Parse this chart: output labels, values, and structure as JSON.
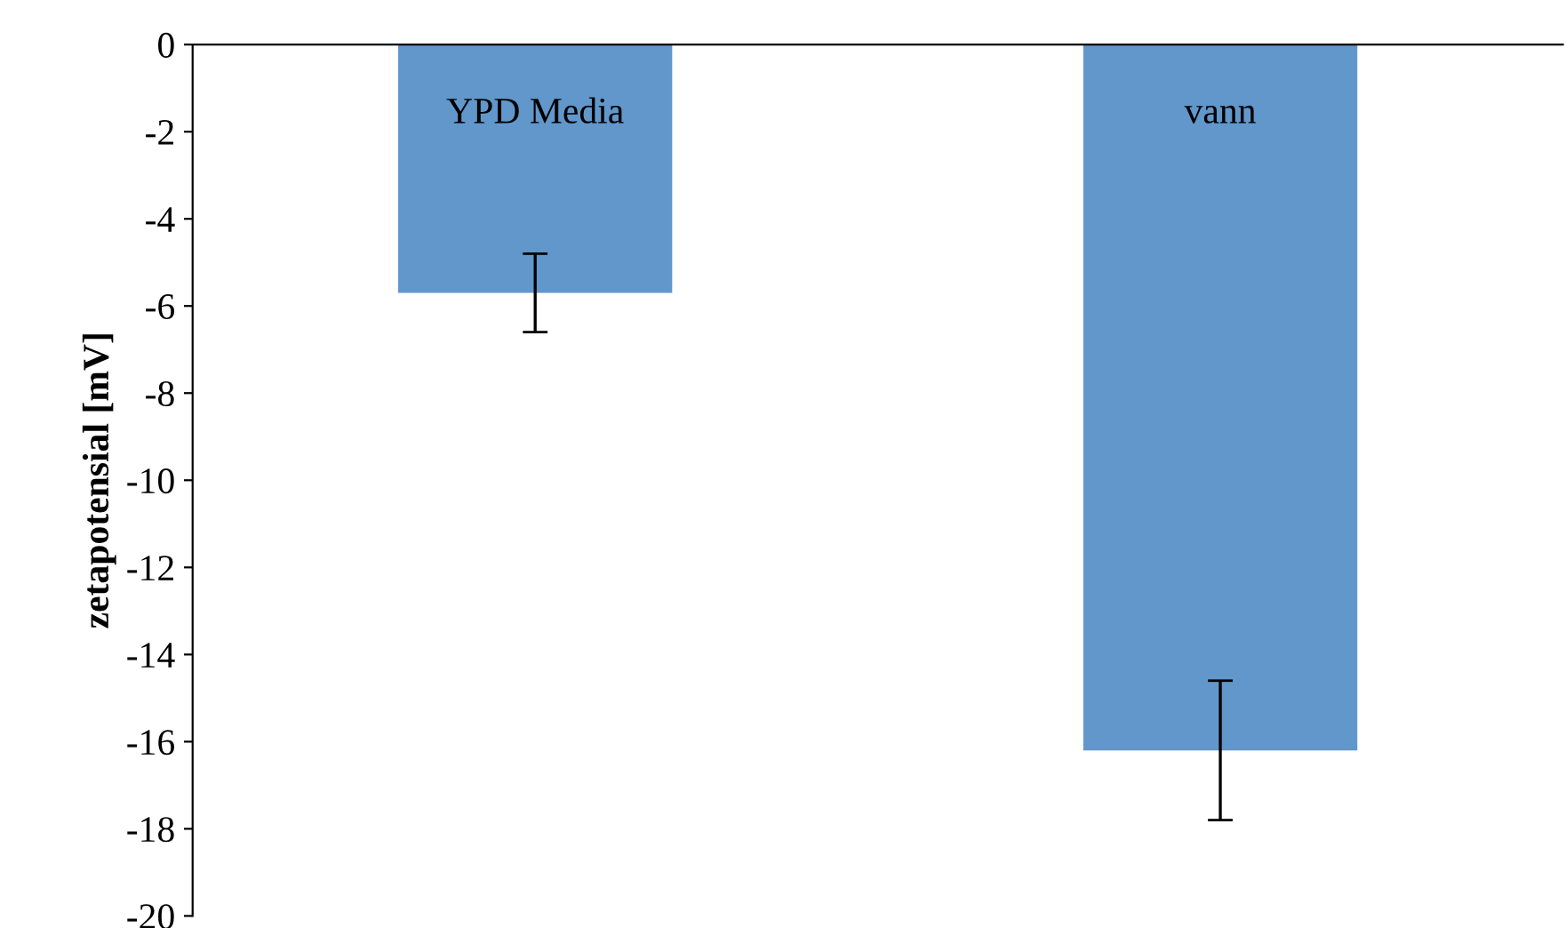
{
  "chart_data": {
    "type": "bar",
    "ylabel": "zetapotensial [mV]",
    "categories": [
      "YPD Media",
      "vann"
    ],
    "values": [
      -5.7,
      -16.2
    ],
    "errors": [
      0.9,
      1.6
    ],
    "color": "#6197cb",
    "ylim": [
      -20,
      0
    ],
    "yticks": [
      -20,
      -18,
      -16,
      -14,
      -12,
      -10,
      -8,
      -6,
      -4,
      -2,
      0
    ],
    "grid": false,
    "legend": false
  }
}
